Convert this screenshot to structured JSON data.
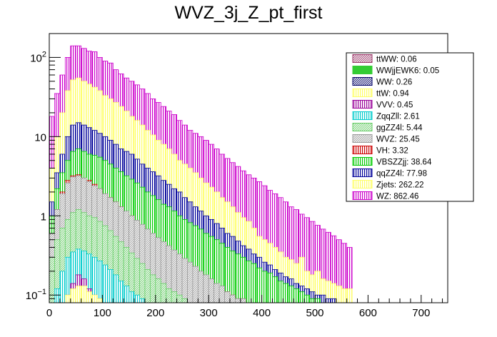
{
  "chart_data": {
    "type": "bar",
    "stacked": true,
    "y_scale": "log",
    "title": "WVZ_3j_Z_pt_first",
    "xlabel": "",
    "ylabel": "",
    "xlim": [
      0,
      750
    ],
    "ylim": [
      0.08,
      200
    ],
    "bin_width": 10,
    "x_ticks": [
      {
        "value": 0,
        "label": "0"
      },
      {
        "value": 100,
        "label": "100"
      },
      {
        "value": 200,
        "label": "200"
      },
      {
        "value": 300,
        "label": "300"
      },
      {
        "value": 400,
        "label": "400"
      },
      {
        "value": 500,
        "label": "500"
      },
      {
        "value": 600,
        "label": "600"
      },
      {
        "value": 700,
        "label": "700"
      }
    ],
    "y_ticks": [
      {
        "value": 0.1,
        "base": "10",
        "exp": "−1"
      },
      {
        "value": 1,
        "label": "1"
      },
      {
        "value": 10,
        "label": "10"
      },
      {
        "value": 100,
        "base": "10",
        "exp": "2"
      }
    ],
    "legend_position": "top-right",
    "series": [
      {
        "name": "WZ",
        "label": "WZ: 862.46",
        "color": "#cc00cc",
        "pattern": "vertical",
        "total_profile": true,
        "values": [
          18,
          35,
          60,
          100,
          140,
          140,
          130,
          120,
          118,
          100,
          90,
          85,
          70,
          62,
          55,
          50,
          45,
          40,
          35,
          30,
          27,
          24,
          21,
          19,
          16,
          14,
          12,
          11,
          10,
          9,
          8,
          7,
          6,
          5.3,
          4.7,
          4.2,
          3.7,
          3.3,
          3.0,
          2.7,
          2.4,
          2.1,
          1.9,
          1.7,
          1.5,
          1.3,
          1.2,
          1.05,
          0.95,
          0.85,
          0.76,
          0.68,
          0.62,
          0.56,
          0.5,
          0.45,
          0.4
        ]
      },
      {
        "name": "Zjets",
        "label": "Zjets: 262.22",
        "color": "#ffff66",
        "pattern": "vertical",
        "total_profile": true,
        "values": [
          4,
          10,
          20,
          38,
          52,
          55,
          50,
          46,
          42,
          38,
          33,
          30,
          27,
          24,
          21,
          18,
          16,
          14,
          12,
          10.5,
          9,
          8,
          7,
          6,
          5,
          4.5,
          4,
          3.5,
          3,
          2.6,
          2.3,
          2,
          1.7,
          1.5,
          1.3,
          1.1,
          0.95,
          0.85,
          0.7,
          0.55,
          0.5,
          0.45,
          0.4,
          0.35,
          0.3,
          0.28,
          0.25,
          0.3,
          0.2,
          0.18,
          0.2,
          0.16,
          0.15,
          0.14,
          0.13,
          0.12,
          0.12
        ]
      },
      {
        "name": "qqZZ4l",
        "label": "qqZZ4l: 77.98",
        "color": "#000099",
        "pattern": "vertical",
        "total_profile": true,
        "values": [
          1.5,
          3.5,
          6,
          10,
          14,
          15,
          14,
          13,
          12,
          11,
          10,
          9,
          8,
          7,
          6.5,
          6,
          5.2,
          4.5,
          4,
          3.6,
          3.2,
          2.8,
          2.5,
          2.2,
          2,
          1.7,
          1.5,
          1.3,
          1.15,
          1,
          0.9,
          0.8,
          0.7,
          0.6,
          0.55,
          0.48,
          0.42,
          0.38,
          0.33,
          0.3,
          0.26,
          0.24,
          0.21,
          0.19,
          0.17,
          0.16,
          0.14,
          0.13,
          0.12,
          0.11,
          0.1,
          0.1,
          0.09,
          0.09,
          0.08,
          0.08,
          0.08
        ]
      },
      {
        "name": "VBSZZjj",
        "label": "VBSZZjj: 38.64",
        "color": "#00cc00",
        "pattern": "vertical",
        "total_profile": true,
        "values": [
          1,
          2.2,
          3.5,
          5,
          6.5,
          7,
          6.5,
          6,
          5.8,
          5.5,
          5,
          4.5,
          4,
          3.6,
          3.2,
          2.9,
          2.6,
          2.3,
          2,
          1.8,
          1.6,
          1.4,
          1.3,
          1.15,
          1,
          0.9,
          0.82,
          0.75,
          0.68,
          0.6,
          0.55,
          0.5,
          0.45,
          0.4,
          0.36,
          0.33,
          0.3,
          0.27,
          0.25,
          0.22,
          0.2,
          0.19,
          0.17,
          0.15,
          0.14,
          0.13,
          0.12,
          0.11,
          0.1,
          0.09,
          0.09,
          0.08,
          0.08,
          0.08,
          0.08,
          0.08,
          0.08
        ]
      },
      {
        "name": "VH",
        "label": "VH: 3.32",
        "color": "#cc0000",
        "pattern": "vertical",
        "total_profile": true,
        "values": [
          0.6,
          1.2,
          2,
          2.8,
          3.2,
          3.3,
          3,
          2.8,
          2.5,
          2.2,
          1.9,
          1.7,
          1.5,
          1.3,
          1.1,
          1,
          0.85,
          0.75,
          0.65,
          0.55,
          0.5,
          0.45,
          0.4,
          0.35,
          0.3,
          0.27,
          0.24,
          0.21,
          0.19,
          0.17,
          0.15,
          0.13,
          0.12,
          0.11,
          0.1,
          0.09,
          0.09,
          0.08,
          0.08,
          0.08,
          0.08,
          0.08,
          0.08,
          0.08,
          0.08,
          0.08,
          0.08,
          0.08,
          0.08,
          0.08,
          0.08,
          0.08,
          0.08,
          0.08,
          0.08,
          0.08,
          0.08
        ]
      },
      {
        "name": "WVZ",
        "label": "WVZ: 25.45",
        "color": "#999999",
        "pattern": "hatch",
        "total_profile": true,
        "values": [
          0.6,
          1.2,
          1.9,
          2.6,
          3.1,
          3.2,
          3,
          2.7,
          2.4,
          2.2,
          1.9,
          1.7,
          1.5,
          1.3,
          1.15,
          1,
          0.88,
          0.78,
          0.68,
          0.6,
          0.53,
          0.47,
          0.42,
          0.37,
          0.33,
          0.29,
          0.26,
          0.23,
          0.2,
          0.18,
          0.16,
          0.14,
          0.13,
          0.11,
          0.1,
          0.09,
          0.09,
          0.08,
          0.08,
          0.08,
          0.08,
          0.08,
          0.08,
          0.08,
          0.08,
          0.08,
          0.08,
          0.08,
          0.08,
          0.08,
          0.08,
          0.08,
          0.08,
          0.08,
          0.08,
          0.08,
          0.08
        ]
      },
      {
        "name": "ggZZ4l",
        "label": "ggZZ4l: 5.44",
        "color": "#66cc66",
        "pattern": "hatch",
        "total_profile": true,
        "values": [
          0.3,
          0.5,
          0.7,
          0.9,
          1.1,
          1.2,
          1.1,
          1,
          0.95,
          0.85,
          0.75,
          0.65,
          0.55,
          0.47,
          0.4,
          0.34,
          0.29,
          0.25,
          0.21,
          0.18,
          0.16,
          0.14,
          0.12,
          0.11,
          0.1,
          0.09,
          0.08,
          0.08,
          0.08,
          0.08,
          0.08,
          0.08,
          0.08,
          0.08,
          0.08,
          0.08,
          0.08,
          0.08,
          0.08,
          0.08,
          0.08,
          0.08,
          0.08,
          0.08,
          0.08,
          0.08,
          0.08,
          0.08,
          0.08,
          0.08,
          0.08,
          0.08,
          0.08,
          0.08,
          0.08,
          0.08,
          0.08
        ]
      },
      {
        "name": "ZqqZll",
        "label": "ZqqZll: 2.61",
        "color": "#00cccc",
        "pattern": "vertical",
        "total_profile": true,
        "values": [
          0.08,
          0.12,
          0.2,
          0.3,
          0.35,
          0.38,
          0.36,
          0.33,
          0.3,
          0.27,
          0.24,
          0.21,
          0.18,
          0.15,
          0.13,
          0.11,
          0.1,
          0.09,
          0.08,
          0.08,
          0.08,
          0.08,
          0.08,
          0.08,
          0.08,
          0.08,
          0.08,
          0.08,
          0.08,
          0.08,
          0.08,
          0.08,
          0.08,
          0.08,
          0.08,
          0.08,
          0.08,
          0.08,
          0.08,
          0.08,
          0.08,
          0.08,
          0.08,
          0.08,
          0.08,
          0.08,
          0.08,
          0.08,
          0.08,
          0.08,
          0.08,
          0.08,
          0.08,
          0.08,
          0.08,
          0.08,
          0.08
        ]
      },
      {
        "name": "VVV",
        "label": "VVV: 0.45",
        "color": "#990099",
        "pattern": "vertical",
        "total_profile": true,
        "values": [
          0.08,
          0.08,
          0.08,
          0.1,
          0.14,
          0.18,
          0.16,
          0.12,
          0.1,
          0.09,
          0.08,
          0.08,
          0.08,
          0.08,
          0.08,
          0.08,
          0.08,
          0.08,
          0.08,
          0.08,
          0.08,
          0.08,
          0.08,
          0.08,
          0.08,
          0.08,
          0.08,
          0.08,
          0.08,
          0.08,
          0.08,
          0.08,
          0.08,
          0.08,
          0.08,
          0.08,
          0.08,
          0.08,
          0.08,
          0.08,
          0.08,
          0.08,
          0.08,
          0.08,
          0.08,
          0.08,
          0.08,
          0.08,
          0.08,
          0.08,
          0.08,
          0.08,
          0.08,
          0.08,
          0.08,
          0.08,
          0.08
        ]
      },
      {
        "name": "ttW",
        "label": "ttW: 0.94",
        "color": "#ffff66",
        "pattern": "vertical",
        "total_profile": true,
        "values": [
          0.08,
          0.08,
          0.08,
          0.1,
          0.12,
          0.13,
          0.13,
          0.11,
          0.1,
          0.09,
          0.08,
          0.08,
          0.08,
          0.08,
          0.08,
          0.08,
          0.08,
          0.08,
          0.08,
          0.08,
          0.08,
          0.08,
          0.08,
          0.08,
          0.08,
          0.08,
          0.08,
          0.08,
          0.08,
          0.08,
          0.08,
          0.08,
          0.08,
          0.08,
          0.08,
          0.08,
          0.08,
          0.08,
          0.08,
          0.08,
          0.08,
          0.08,
          0.08,
          0.08,
          0.08,
          0.08,
          0.08,
          0.08,
          0.08,
          0.08,
          0.08,
          0.08,
          0.08,
          0.08,
          0.08,
          0.08,
          0.08
        ]
      },
      {
        "name": "WW",
        "label": "WW: 0.26",
        "color": "#000066",
        "pattern": "hatch",
        "total_profile": false,
        "values": []
      },
      {
        "name": "WWjjEWK6",
        "label": "WWjjEWK6: 0.05",
        "color": "#33cc33",
        "pattern": "solid",
        "total_profile": false,
        "values": []
      },
      {
        "name": "ttWW",
        "label": "ttWW: 0.06",
        "color": "#993366",
        "pattern": "hatch",
        "total_profile": false,
        "values": []
      }
    ]
  }
}
